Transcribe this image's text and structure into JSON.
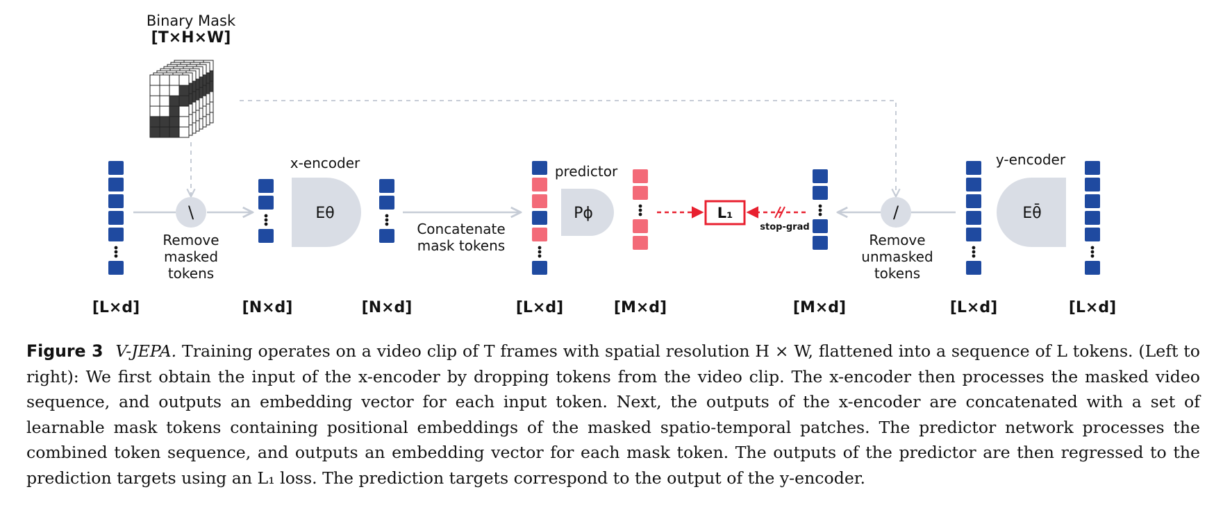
{
  "diagram": {
    "binary_mask": {
      "title": "Binary Mask",
      "dims": "[T×H×W]"
    },
    "stages": {
      "remove_masked": {
        "symbol": "\\",
        "label_lines": [
          "Remove",
          "masked",
          "tokens"
        ]
      },
      "x_encoder": {
        "title": "x-encoder",
        "symbol": "Eθ"
      },
      "concatenate": {
        "label_lines": [
          "Concatenate",
          "mask tokens"
        ]
      },
      "predictor": {
        "title": "predictor",
        "symbol": "Pϕ"
      },
      "loss": {
        "symbol": "L₁",
        "stop_grad": "stop-grad"
      },
      "remove_unmasked": {
        "symbol": "/",
        "label_lines": [
          "Remove",
          "unmasked",
          "tokens"
        ]
      },
      "y_encoder": {
        "title": "y-encoder",
        "symbol": "Eθ̄"
      }
    },
    "dims": [
      "[L×d]",
      "[N×d]",
      "[N×d]",
      "[L×d]",
      "[M×d]",
      "[M×d]",
      "[L×d]",
      "[L×d]"
    ],
    "colors": {
      "token_blue": "#1f4aa0",
      "mask_token_red": "#f36a78",
      "block_gray": "#d9dde5",
      "arrow_gray": "#c6ccd6",
      "loss_red": "#e8202f"
    }
  },
  "caption": {
    "label": "Figure 3",
    "title": "V-JEPA.",
    "text": "Training operates on a video clip of T frames with spatial resolution H × W, flattened into a sequence of L tokens. (Left to right): We first obtain the input of the x-encoder by dropping tokens from the video clip. The x-encoder then processes the masked video sequence, and outputs an embedding vector for each input token. Next, the outputs of the x-encoder are concatenated with a set of learnable mask tokens containing positional embeddings of the masked spatio-temporal patches. The predictor network processes the combined token sequence, and outputs an embedding vector for each mask token. The outputs of the predictor are then regressed to the prediction targets using an L₁ loss. The prediction targets correspond to the output of the y-encoder."
  }
}
